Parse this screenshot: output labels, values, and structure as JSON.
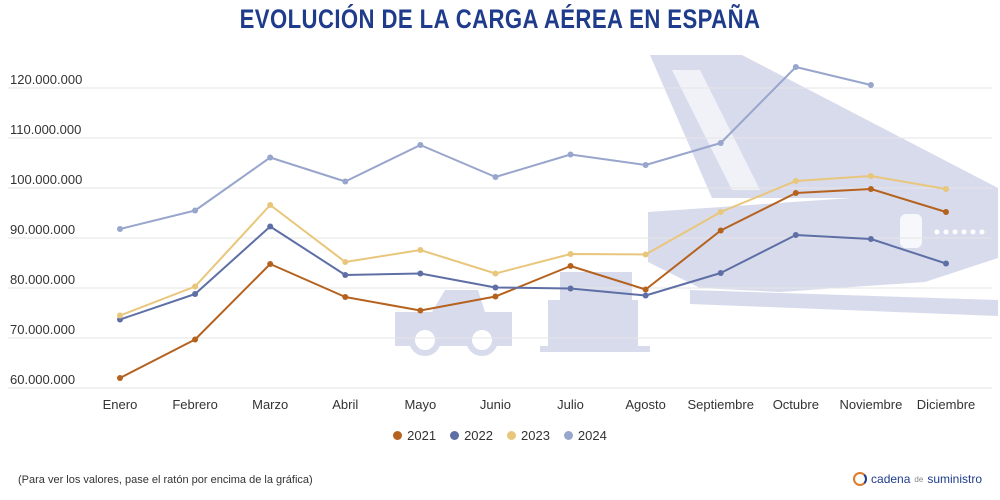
{
  "title": "EVOLUCIÓN DE LA CARGA AÉREA EN ESPAÑA",
  "footnote": "(Para ver los valores, pase el ratón por encima de la gráfica)",
  "brand": {
    "name": "cadena",
    "connector": "de",
    "suffix": "suministro"
  },
  "colors": {
    "2021": "#b5621f",
    "2022": "#5e6fa6",
    "2023": "#e8c67b",
    "2024": "#98a5cc",
    "watermark": "#d8dbec",
    "grid": "#e6e6e6"
  },
  "chart_data": {
    "type": "line",
    "title": "EVOLUCIÓN DE LA CARGA AÉREA EN ESPAÑA",
    "xlabel": "",
    "ylabel": "",
    "categories": [
      "Enero",
      "Febrero",
      "Marzo",
      "Abril",
      "Mayo",
      "Junio",
      "Julio",
      "Agosto",
      "Septiembre",
      "Octubre",
      "Noviembre",
      "Diciembre"
    ],
    "ylim": [
      58000000,
      128000000
    ],
    "yticks": [
      60000000,
      70000000,
      80000000,
      90000000,
      100000000,
      110000000,
      120000000
    ],
    "ytick_labels": [
      "60.000.000",
      "70.000.000",
      "80.000.000",
      "90.000.000",
      "100.000.000",
      "110.000.000",
      "120.000.000"
    ],
    "grid": true,
    "legend_position": "bottom",
    "series": [
      {
        "name": "2021",
        "values": [
          62000000,
          69700000,
          84800000,
          78200000,
          75500000,
          78300000,
          84400000,
          79700000,
          91500000,
          99000000,
          99800000,
          95200000
        ]
      },
      {
        "name": "2022",
        "values": [
          73700000,
          78800000,
          92300000,
          82600000,
          82900000,
          80100000,
          79900000,
          78500000,
          83000000,
          90600000,
          89800000,
          84900000
        ]
      },
      {
        "name": "2023",
        "values": [
          74500000,
          80300000,
          96600000,
          85200000,
          87600000,
          82900000,
          86800000,
          86700000,
          95200000,
          101400000,
          102400000,
          99800000
        ]
      },
      {
        "name": "2024",
        "values": [
          91800000,
          95500000,
          106100000,
          101300000,
          108600000,
          102200000,
          106700000,
          104600000,
          109000000,
          124200000,
          120600000,
          null
        ]
      }
    ]
  }
}
